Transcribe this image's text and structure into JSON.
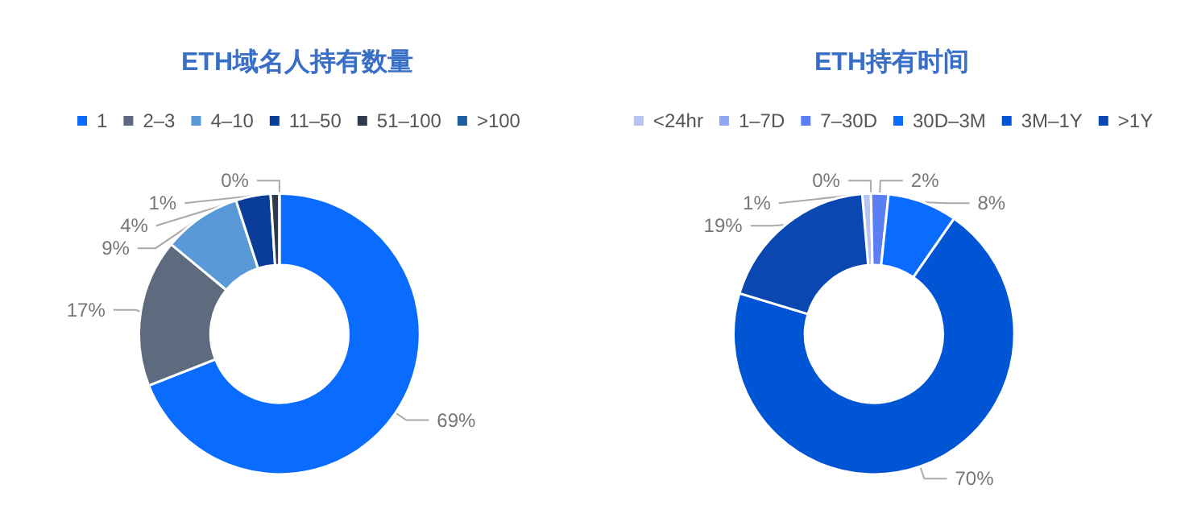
{
  "chart_data": [
    {
      "type": "donut",
      "title": "ETH域名人持有数量",
      "legend": "top",
      "categories": [
        "1",
        "2–3",
        "4–10",
        "11–50",
        "51–100",
        ">100"
      ],
      "values": [
        69,
        17,
        9,
        4,
        1,
        0
      ],
      "value_labels": [
        "69%",
        "17%",
        "9%",
        "4%",
        "1%",
        "0%"
      ],
      "colors": [
        "#0a6cff",
        "#5e6a7d",
        "#5a99d8",
        "#0a3d99",
        "#2f3a4a",
        "#1f5fa0"
      ]
    },
    {
      "type": "donut",
      "title": "ETH持有时间",
      "legend": "top",
      "categories": [
        "<24hr",
        "1–7D",
        "7–30D",
        "30D–3M",
        "3M–1Y",
        ">1Y"
      ],
      "values": [
        1,
        0,
        2,
        8,
        70,
        19
      ],
      "value_labels": [
        "1%",
        "0%",
        "2%",
        "8%",
        "70%",
        "19%"
      ],
      "colors": [
        "#b8c4f0",
        "#8fa7f5",
        "#5b7ef5",
        "#0a6cff",
        "#0055d4",
        "#0a47b0"
      ]
    }
  ]
}
